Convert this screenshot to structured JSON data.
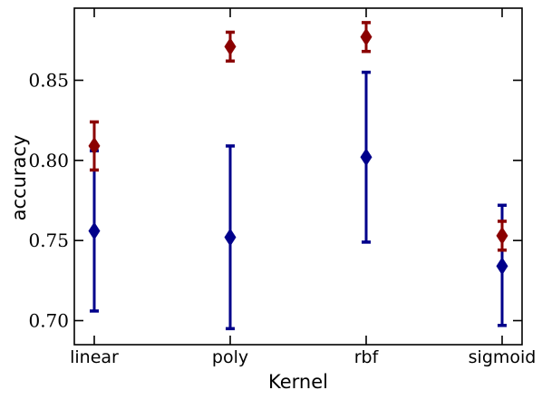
{
  "chart_data": {
    "type": "scatter",
    "title": "",
    "xlabel": "Kernel",
    "ylabel": "accuracy",
    "categories": [
      "linear",
      "poly",
      "rbf",
      "sigmoid"
    ],
    "yticks": [
      "0.70",
      "0.75",
      "0.80",
      "0.85"
    ],
    "ylim": [
      0.685,
      0.895
    ],
    "grid": false,
    "series": [
      {
        "color": "#8b0000",
        "marker": "diamond",
        "values": [
          0.809,
          0.871,
          0.877,
          0.753
        ],
        "err_low": [
          0.794,
          0.862,
          0.868,
          0.744
        ],
        "err_high": [
          0.824,
          0.88,
          0.886,
          0.762
        ]
      },
      {
        "color": "#00008b",
        "marker": "diamond",
        "values": [
          0.756,
          0.752,
          0.802,
          0.734
        ],
        "err_low": [
          0.706,
          0.695,
          0.749,
          0.697
        ],
        "err_high": [
          0.806,
          0.809,
          0.855,
          0.772
        ]
      }
    ]
  }
}
